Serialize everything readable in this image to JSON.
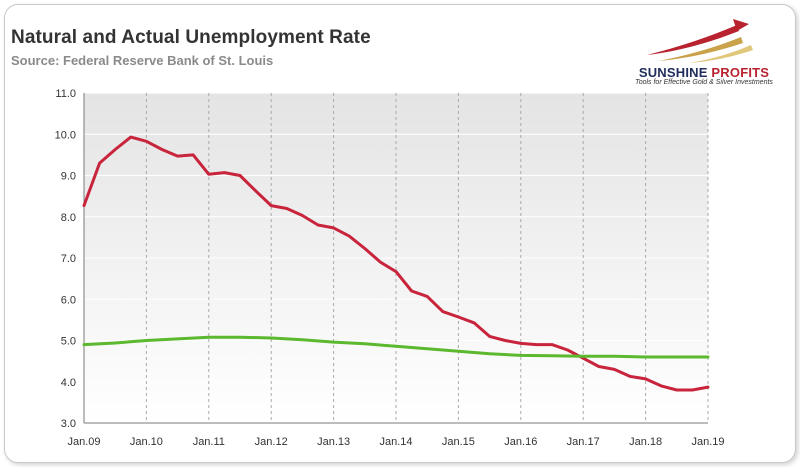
{
  "header": {
    "title": "Natural and Actual Unemployment Rate",
    "subtitle": "Source: Federal Reserve Bank of St. Louis"
  },
  "logo": {
    "name_part1": "SUNSHINE",
    "name_part2": "PROFITS",
    "tagline": "Tools for Effective Gold & Silver Investments"
  },
  "chart_data": {
    "type": "line",
    "title": "Natural and Actual Unemployment Rate",
    "subtitle": "Source: Federal Reserve Bank of St. Louis",
    "xlabel": "",
    "ylabel": "",
    "x_tick_labels": [
      "Jan.09",
      "Jan.10",
      "Jan.11",
      "Jan.12",
      "Jan.13",
      "Jan.14",
      "Jan.15",
      "Jan.16",
      "Jan.17",
      "Jan.18",
      "Jan.19"
    ],
    "y_tick_labels": [
      "3.0",
      "4.0",
      "5.0",
      "6.0",
      "7.0",
      "8.0",
      "9.0",
      "10.0",
      "11.0"
    ],
    "xlim": [
      2009.0,
      2019.0
    ],
    "ylim": [
      3.0,
      11.0
    ],
    "grid": true,
    "legend": "none",
    "series": [
      {
        "color": "#c8243c",
        "x": [
          2009.0,
          2009.25,
          2009.5,
          2009.75,
          2010.0,
          2010.25,
          2010.5,
          2010.75,
          2011.0,
          2011.25,
          2011.5,
          2011.75,
          2012.0,
          2012.25,
          2012.5,
          2012.75,
          2013.0,
          2013.25,
          2013.5,
          2013.75,
          2014.0,
          2014.25,
          2014.5,
          2014.75,
          2015.0,
          2015.25,
          2015.5,
          2015.75,
          2016.0,
          2016.25,
          2016.5,
          2016.75,
          2017.0,
          2017.25,
          2017.5,
          2017.75,
          2018.0,
          2018.25,
          2018.5,
          2018.75,
          2019.0
        ],
        "values": [
          8.27,
          9.3,
          9.63,
          9.93,
          9.83,
          9.63,
          9.47,
          9.5,
          9.03,
          9.07,
          9.0,
          8.63,
          8.27,
          8.2,
          8.03,
          7.8,
          7.73,
          7.53,
          7.23,
          6.9,
          6.67,
          6.2,
          6.07,
          5.7,
          5.57,
          5.43,
          5.1,
          5.0,
          4.93,
          4.9,
          4.9,
          4.77,
          4.57,
          4.37,
          4.3,
          4.13,
          4.07,
          3.9,
          3.8,
          3.8,
          3.87
        ]
      },
      {
        "color": "#5cb82e",
        "x": [
          2009.0,
          2009.5,
          2010.0,
          2010.5,
          2011.0,
          2011.5,
          2012.0,
          2012.5,
          2013.0,
          2013.5,
          2014.0,
          2014.5,
          2015.0,
          2015.5,
          2016.0,
          2016.5,
          2017.0,
          2017.5,
          2018.0,
          2018.5,
          2019.0
        ],
        "values": [
          4.9,
          4.94,
          5.0,
          5.04,
          5.08,
          5.08,
          5.06,
          5.02,
          4.96,
          4.92,
          4.86,
          4.8,
          4.74,
          4.68,
          4.64,
          4.63,
          4.62,
          4.62,
          4.6,
          4.6,
          4.6
        ]
      }
    ]
  }
}
